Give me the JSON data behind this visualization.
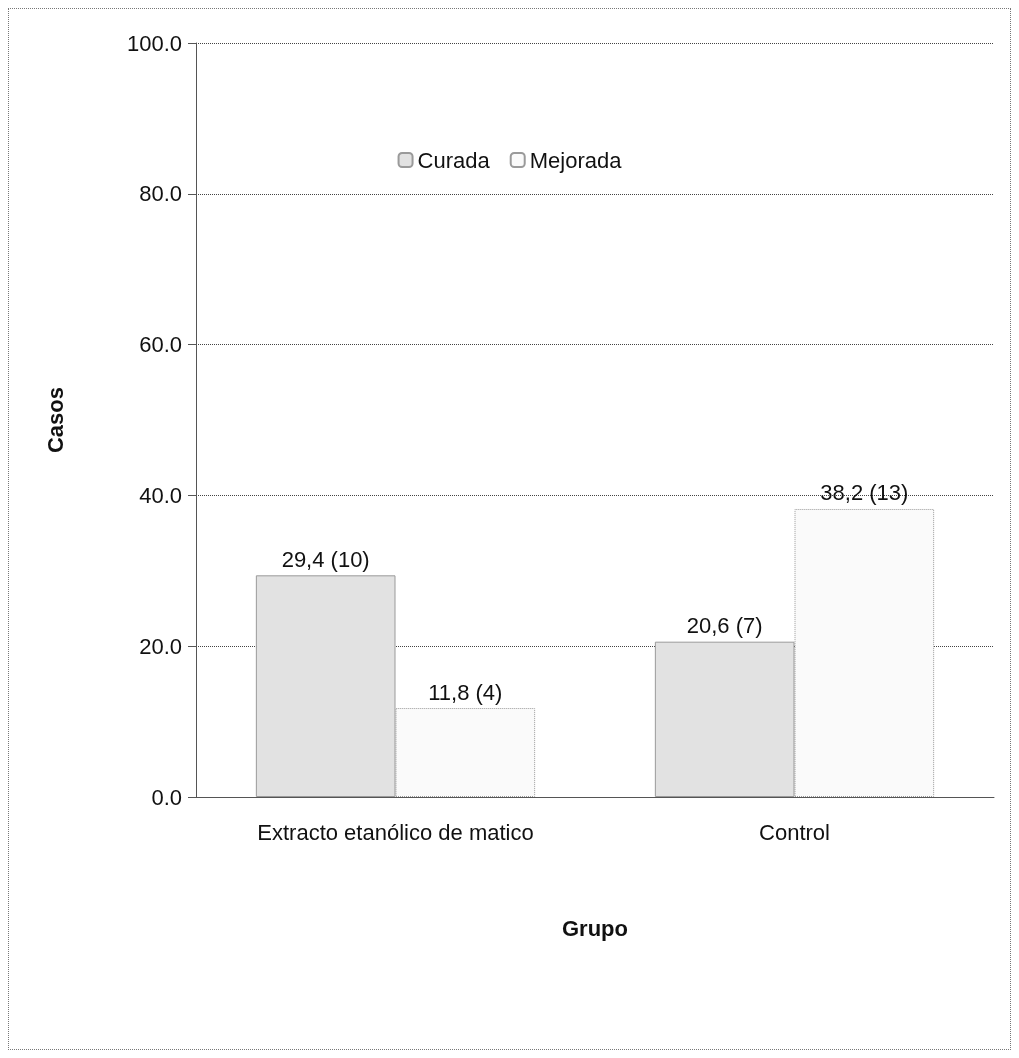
{
  "chart_data": {
    "type": "bar",
    "xlabel": "Grupo",
    "ylabel": "Casos",
    "categories": [
      "Extracto etanólico de matico",
      "Control"
    ],
    "series": [
      {
        "name": "Curada",
        "color": "#e2e2e2",
        "values": [
          29.4,
          20.6
        ],
        "value_labels": [
          "29,4 (10)",
          "20,6 (7)"
        ]
      },
      {
        "name": "Mejorada",
        "color": "#fafafa",
        "values": [
          11.8,
          38.2
        ],
        "value_labels": [
          "11,8 (4)",
          "38,2 (13)"
        ]
      }
    ],
    "ylim": [
      0,
      100
    ],
    "yticks": [
      {
        "value": 0,
        "label": "0.0"
      },
      {
        "value": 20,
        "label": "20.0"
      },
      {
        "value": 40,
        "label": "40.0"
      },
      {
        "value": 60,
        "label": "60.0"
      },
      {
        "value": 80,
        "label": "80.0"
      },
      {
        "value": 100,
        "label": "100.0"
      }
    ],
    "grid": "y",
    "legend": "top"
  }
}
